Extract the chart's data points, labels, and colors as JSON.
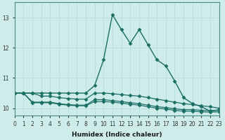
{
  "xlabel": "Humidex (Indice chaleur)",
  "background_color": "#ceecea",
  "grid_color": "#b8deda",
  "line_color": "#1a6e64",
  "xlim": [
    0,
    23
  ],
  "ylim": [
    9.75,
    13.5
  ],
  "yticks": [
    10,
    11,
    12,
    13
  ],
  "xticks": [
    0,
    1,
    2,
    3,
    4,
    5,
    6,
    7,
    8,
    9,
    10,
    11,
    12,
    13,
    14,
    15,
    16,
    17,
    18,
    19,
    20,
    21,
    22,
    23
  ],
  "series": [
    [
      10.5,
      10.5,
      10.5,
      10.5,
      10.5,
      10.5,
      10.5,
      10.5,
      10.5,
      10.75,
      11.6,
      13.1,
      12.6,
      12.15,
      12.6,
      12.1,
      11.6,
      11.4,
      10.9,
      10.35,
      10.15,
      10.05,
      9.9,
      9.95
    ],
    [
      10.5,
      10.5,
      10.5,
      10.4,
      10.4,
      10.35,
      10.32,
      10.3,
      10.3,
      10.5,
      10.5,
      10.48,
      10.45,
      10.42,
      10.4,
      10.35,
      10.3,
      10.25,
      10.2,
      10.15,
      10.12,
      10.08,
      10.05,
      10.0
    ],
    [
      10.5,
      10.5,
      10.2,
      10.2,
      10.2,
      10.15,
      10.12,
      10.1,
      10.1,
      10.28,
      10.28,
      10.25,
      10.22,
      10.18,
      10.15,
      10.1,
      10.05,
      10.02,
      9.98,
      9.95,
      9.95,
      9.93,
      9.92,
      9.93
    ],
    [
      10.5,
      10.5,
      10.18,
      10.18,
      10.18,
      10.13,
      10.1,
      10.08,
      10.08,
      10.22,
      10.22,
      10.2,
      10.17,
      10.13,
      10.1,
      10.05,
      10.0,
      9.97,
      9.93,
      9.9,
      9.9,
      9.88,
      9.87,
      9.88
    ]
  ],
  "linewidths": [
    1.0,
    0.9,
    0.9,
    0.9
  ],
  "markers": [
    "D",
    "D",
    "D",
    "D"
  ],
  "markersizes": [
    2.5,
    2.5,
    2.5,
    2.5
  ],
  "xlabel_fontsize": 6.5,
  "tick_fontsize": 5.5
}
